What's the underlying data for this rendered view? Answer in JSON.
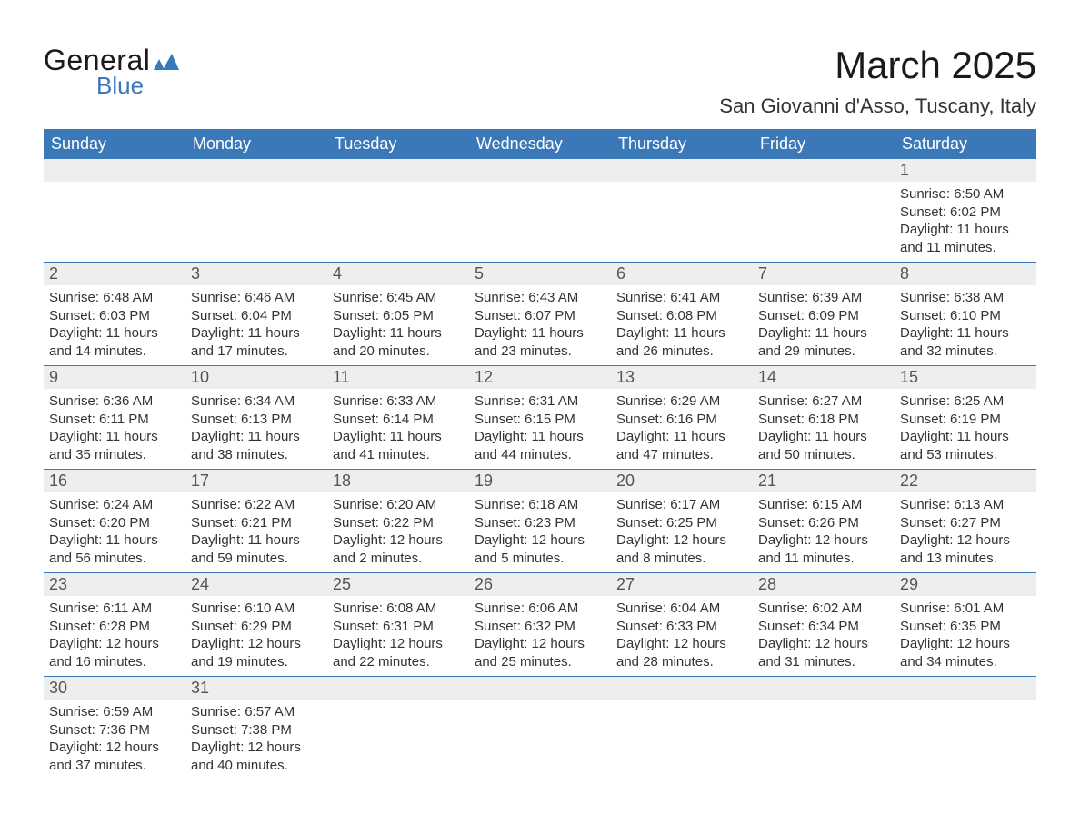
{
  "logo": {
    "text_top": "General",
    "text_bottom": "Blue",
    "accent_color": "#3b78b8"
  },
  "title": "March 2025",
  "location": "San Giovanni d'Asso, Tuscany, Italy",
  "colors": {
    "header_bg": "#3b78b8",
    "header_text": "#ffffff",
    "daynum_bg": "#eeeeee",
    "row_border": "#3b78b8",
    "body_text": "#333333"
  },
  "day_headers": [
    "Sunday",
    "Monday",
    "Tuesday",
    "Wednesday",
    "Thursday",
    "Friday",
    "Saturday"
  ],
  "weeks": [
    [
      {
        "day": "",
        "sunrise": "",
        "sunset": "",
        "daylight": ""
      },
      {
        "day": "",
        "sunrise": "",
        "sunset": "",
        "daylight": ""
      },
      {
        "day": "",
        "sunrise": "",
        "sunset": "",
        "daylight": ""
      },
      {
        "day": "",
        "sunrise": "",
        "sunset": "",
        "daylight": ""
      },
      {
        "day": "",
        "sunrise": "",
        "sunset": "",
        "daylight": ""
      },
      {
        "day": "",
        "sunrise": "",
        "sunset": "",
        "daylight": ""
      },
      {
        "day": "1",
        "sunrise": "Sunrise: 6:50 AM",
        "sunset": "Sunset: 6:02 PM",
        "daylight": "Daylight: 11 hours and 11 minutes."
      }
    ],
    [
      {
        "day": "2",
        "sunrise": "Sunrise: 6:48 AM",
        "sunset": "Sunset: 6:03 PM",
        "daylight": "Daylight: 11 hours and 14 minutes."
      },
      {
        "day": "3",
        "sunrise": "Sunrise: 6:46 AM",
        "sunset": "Sunset: 6:04 PM",
        "daylight": "Daylight: 11 hours and 17 minutes."
      },
      {
        "day": "4",
        "sunrise": "Sunrise: 6:45 AM",
        "sunset": "Sunset: 6:05 PM",
        "daylight": "Daylight: 11 hours and 20 minutes."
      },
      {
        "day": "5",
        "sunrise": "Sunrise: 6:43 AM",
        "sunset": "Sunset: 6:07 PM",
        "daylight": "Daylight: 11 hours and 23 minutes."
      },
      {
        "day": "6",
        "sunrise": "Sunrise: 6:41 AM",
        "sunset": "Sunset: 6:08 PM",
        "daylight": "Daylight: 11 hours and 26 minutes."
      },
      {
        "day": "7",
        "sunrise": "Sunrise: 6:39 AM",
        "sunset": "Sunset: 6:09 PM",
        "daylight": "Daylight: 11 hours and 29 minutes."
      },
      {
        "day": "8",
        "sunrise": "Sunrise: 6:38 AM",
        "sunset": "Sunset: 6:10 PM",
        "daylight": "Daylight: 11 hours and 32 minutes."
      }
    ],
    [
      {
        "day": "9",
        "sunrise": "Sunrise: 6:36 AM",
        "sunset": "Sunset: 6:11 PM",
        "daylight": "Daylight: 11 hours and 35 minutes."
      },
      {
        "day": "10",
        "sunrise": "Sunrise: 6:34 AM",
        "sunset": "Sunset: 6:13 PM",
        "daylight": "Daylight: 11 hours and 38 minutes."
      },
      {
        "day": "11",
        "sunrise": "Sunrise: 6:33 AM",
        "sunset": "Sunset: 6:14 PM",
        "daylight": "Daylight: 11 hours and 41 minutes."
      },
      {
        "day": "12",
        "sunrise": "Sunrise: 6:31 AM",
        "sunset": "Sunset: 6:15 PM",
        "daylight": "Daylight: 11 hours and 44 minutes."
      },
      {
        "day": "13",
        "sunrise": "Sunrise: 6:29 AM",
        "sunset": "Sunset: 6:16 PM",
        "daylight": "Daylight: 11 hours and 47 minutes."
      },
      {
        "day": "14",
        "sunrise": "Sunrise: 6:27 AM",
        "sunset": "Sunset: 6:18 PM",
        "daylight": "Daylight: 11 hours and 50 minutes."
      },
      {
        "day": "15",
        "sunrise": "Sunrise: 6:25 AM",
        "sunset": "Sunset: 6:19 PM",
        "daylight": "Daylight: 11 hours and 53 minutes."
      }
    ],
    [
      {
        "day": "16",
        "sunrise": "Sunrise: 6:24 AM",
        "sunset": "Sunset: 6:20 PM",
        "daylight": "Daylight: 11 hours and 56 minutes."
      },
      {
        "day": "17",
        "sunrise": "Sunrise: 6:22 AM",
        "sunset": "Sunset: 6:21 PM",
        "daylight": "Daylight: 11 hours and 59 minutes."
      },
      {
        "day": "18",
        "sunrise": "Sunrise: 6:20 AM",
        "sunset": "Sunset: 6:22 PM",
        "daylight": "Daylight: 12 hours and 2 minutes."
      },
      {
        "day": "19",
        "sunrise": "Sunrise: 6:18 AM",
        "sunset": "Sunset: 6:23 PM",
        "daylight": "Daylight: 12 hours and 5 minutes."
      },
      {
        "day": "20",
        "sunrise": "Sunrise: 6:17 AM",
        "sunset": "Sunset: 6:25 PM",
        "daylight": "Daylight: 12 hours and 8 minutes."
      },
      {
        "day": "21",
        "sunrise": "Sunrise: 6:15 AM",
        "sunset": "Sunset: 6:26 PM",
        "daylight": "Daylight: 12 hours and 11 minutes."
      },
      {
        "day": "22",
        "sunrise": "Sunrise: 6:13 AM",
        "sunset": "Sunset: 6:27 PM",
        "daylight": "Daylight: 12 hours and 13 minutes."
      }
    ],
    [
      {
        "day": "23",
        "sunrise": "Sunrise: 6:11 AM",
        "sunset": "Sunset: 6:28 PM",
        "daylight": "Daylight: 12 hours and 16 minutes."
      },
      {
        "day": "24",
        "sunrise": "Sunrise: 6:10 AM",
        "sunset": "Sunset: 6:29 PM",
        "daylight": "Daylight: 12 hours and 19 minutes."
      },
      {
        "day": "25",
        "sunrise": "Sunrise: 6:08 AM",
        "sunset": "Sunset: 6:31 PM",
        "daylight": "Daylight: 12 hours and 22 minutes."
      },
      {
        "day": "26",
        "sunrise": "Sunrise: 6:06 AM",
        "sunset": "Sunset: 6:32 PM",
        "daylight": "Daylight: 12 hours and 25 minutes."
      },
      {
        "day": "27",
        "sunrise": "Sunrise: 6:04 AM",
        "sunset": "Sunset: 6:33 PM",
        "daylight": "Daylight: 12 hours and 28 minutes."
      },
      {
        "day": "28",
        "sunrise": "Sunrise: 6:02 AM",
        "sunset": "Sunset: 6:34 PM",
        "daylight": "Daylight: 12 hours and 31 minutes."
      },
      {
        "day": "29",
        "sunrise": "Sunrise: 6:01 AM",
        "sunset": "Sunset: 6:35 PM",
        "daylight": "Daylight: 12 hours and 34 minutes."
      }
    ],
    [
      {
        "day": "30",
        "sunrise": "Sunrise: 6:59 AM",
        "sunset": "Sunset: 7:36 PM",
        "daylight": "Daylight: 12 hours and 37 minutes."
      },
      {
        "day": "31",
        "sunrise": "Sunrise: 6:57 AM",
        "sunset": "Sunset: 7:38 PM",
        "daylight": "Daylight: 12 hours and 40 minutes."
      },
      {
        "day": "",
        "sunrise": "",
        "sunset": "",
        "daylight": ""
      },
      {
        "day": "",
        "sunrise": "",
        "sunset": "",
        "daylight": ""
      },
      {
        "day": "",
        "sunrise": "",
        "sunset": "",
        "daylight": ""
      },
      {
        "day": "",
        "sunrise": "",
        "sunset": "",
        "daylight": ""
      },
      {
        "day": "",
        "sunrise": "",
        "sunset": "",
        "daylight": ""
      }
    ]
  ]
}
